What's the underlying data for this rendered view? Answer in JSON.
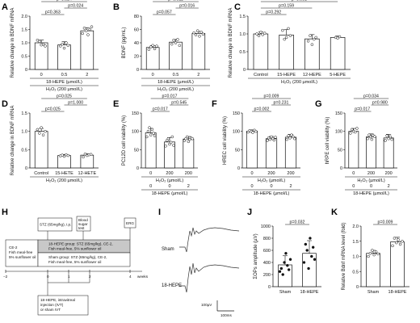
{
  "panel_labels": [
    "A",
    "B",
    "C",
    "D",
    "E",
    "F",
    "G",
    "H",
    "I",
    "J",
    "K"
  ],
  "chart_data": [
    {
      "panel": "A",
      "type": "bar",
      "ylabel": "Relative change in BDNF mRNA",
      "ylim": [
        0,
        2
      ],
      "yticks": [
        "0",
        "0.5",
        "1.0",
        "1.5",
        "2.0"
      ],
      "categories": [
        "0",
        "0.5",
        "2"
      ],
      "values": [
        1.0,
        0.92,
        1.45
      ],
      "errors": [
        0.1,
        0.12,
        0.12
      ],
      "points": [
        [
          1.1,
          1.05,
          0.92,
          0.95,
          0.88
        ],
        [
          0.88,
          0.95,
          0.8,
          1.0,
          0.9
        ],
        [
          1.35,
          1.55,
          1.45,
          1.3,
          1.5,
          1.6
        ]
      ],
      "comparisons": [
        {
          "from": 0,
          "to": 1,
          "label": "p=0.363"
        },
        {
          "from": 1,
          "to": 2,
          "label": "p=0.024"
        },
        {
          "from": 0,
          "to": 2,
          "label": "p=0.024"
        }
      ],
      "xgroup": [
        "18-HEPE (µmol/L)",
        "H₂O₂ (200 µmol/L)"
      ]
    },
    {
      "panel": "B",
      "type": "bar",
      "ylabel": "BDNF (pg/mL)",
      "ylim": [
        0,
        80
      ],
      "yticks": [
        "0",
        "20",
        "40",
        "60",
        "80"
      ],
      "categories": [
        "0",
        "0.5",
        "2"
      ],
      "values": [
        33,
        41,
        54
      ],
      "errors": [
        3,
        4,
        3
      ],
      "points": [
        [
          30,
          34,
          36,
          31,
          35
        ],
        [
          38,
          44,
          40,
          45,
          36
        ],
        [
          55,
          52,
          58,
          50,
          56,
          53
        ]
      ],
      "comparisons": [
        {
          "from": 0,
          "to": 1,
          "label": "p=0.057"
        },
        {
          "from": 1,
          "to": 2,
          "label": "p=0.016"
        },
        {
          "from": 0,
          "to": 2,
          "label": "p=0.011"
        }
      ],
      "xgroup": [
        "18-HEPE (µmol/L)",
        "H₂O₂ (200 µmol/L)"
      ]
    },
    {
      "panel": "C",
      "type": "bar",
      "ylabel": "Relative change in BDNF mRNA",
      "ylim": [
        0,
        1.5
      ],
      "yticks": [
        "0",
        "0.5",
        "1.0",
        "1.5"
      ],
      "categories": [
        "Control",
        "15-HEPE",
        "12-HEPE",
        "5-HEPE"
      ],
      "values": [
        1.0,
        0.97,
        0.86,
        0.9
      ],
      "errors": [
        0.06,
        0.15,
        0.12,
        0.04
      ],
      "points": [
        [
          1.0,
          0.95,
          1.05,
          0.98,
          1.02
        ],
        [
          1.1,
          0.85,
          0.9,
          1.15,
          0.95
        ],
        [
          0.8,
          0.95,
          0.7,
          0.85,
          0.9
        ],
        [
          0.9,
          0.88,
          0.92
        ]
      ],
      "comparisons": [
        {
          "from": 0,
          "to": 1,
          "label": "p=0.292"
        },
        {
          "from": 0,
          "to": 2,
          "label": "p=0.159"
        },
        {
          "from": 0,
          "to": 3,
          "label": "p=0.051"
        }
      ],
      "xgroup": [
        "H₂O₂ (200 µmol/L)"
      ]
    },
    {
      "panel": "D",
      "type": "bar",
      "ylabel": "Relative change in BDNF mRNA",
      "ylim": [
        0,
        1.5
      ],
      "yticks": [
        "0",
        "0.5",
        "1.0",
        "1.5"
      ],
      "categories": [
        "Control",
        "15-HETE",
        "12-HETE"
      ],
      "values": [
        1.0,
        0.34,
        0.35
      ],
      "errors": [
        0.08,
        0.03,
        0.04
      ],
      "points": [
        [
          1.05,
          0.95,
          1.1,
          0.9,
          1.0
        ],
        [
          0.33,
          0.35,
          0.32,
          0.36,
          0.34
        ],
        [
          0.3,
          0.38,
          0.34,
          0.36,
          0.37
        ]
      ],
      "comparisons": [
        {
          "from": 0,
          "to": 1,
          "label": "p=0.025"
        },
        {
          "from": 1,
          "to": 2,
          "label": "p=1.000"
        },
        {
          "from": 0,
          "to": 2,
          "label": "p=0.025"
        }
      ],
      "xgroup": [
        "H₂O₂ (200 µmol/L)"
      ]
    },
    {
      "panel": "E",
      "type": "bar",
      "ylabel": "PC12D cell viability (%)",
      "ylim": [
        0,
        150
      ],
      "yticks": [
        "0",
        "50",
        "100",
        "150"
      ],
      "categories": [
        "0",
        "200",
        "200"
      ],
      "values": [
        96,
        71,
        79
      ],
      "errors": [
        12,
        12,
        7
      ],
      "points": [
        [
          85,
          100,
          110,
          90,
          105,
          95,
          88
        ],
        [
          60,
          75,
          80,
          65,
          70,
          85,
          62
        ],
        [
          75,
          80,
          85,
          72,
          78,
          82,
          80
        ]
      ],
      "comparisons": [
        {
          "from": 0,
          "to": 1,
          "label": "p=0.017"
        },
        {
          "from": 1,
          "to": 2,
          "label": "p=0.545"
        },
        {
          "from": 0,
          "to": 2,
          "label": "p=0.017"
        }
      ],
      "row1": [
        "0",
        "200",
        "200"
      ],
      "row2": [
        "0",
        "0",
        "2"
      ],
      "row1label": "H₂O₂ (µmol/L)",
      "row2label": "18-HEPE (µmol/L)"
    },
    {
      "panel": "F",
      "type": "bar",
      "ylabel": "HREC cell viability (%)",
      "ylim": [
        0,
        150
      ],
      "yticks": [
        "0",
        "50",
        "100",
        "150"
      ],
      "categories": [
        "0",
        "200",
        "200"
      ],
      "values": [
        100,
        80,
        84
      ],
      "errors": [
        4,
        6,
        8
      ],
      "points": [
        [
          98,
          102,
          100,
          97,
          103,
          100
        ],
        [
          75,
          82,
          78,
          85,
          80,
          76,
          84
        ],
        [
          78,
          88,
          82,
          90,
          85,
          80
        ]
      ],
      "comparisons": [
        {
          "from": 0,
          "to": 1,
          "label": "p=0.002"
        },
        {
          "from": 1,
          "to": 2,
          "label": "p=0.231"
        },
        {
          "from": 0,
          "to": 2,
          "label": "p=0.009"
        }
      ],
      "row1": [
        "0",
        "200",
        "200"
      ],
      "row2": [
        "0",
        "0",
        "2"
      ],
      "row1label": "H₂O₂ (µmol/L)",
      "row2label": "18-HEPE (µmol/L)"
    },
    {
      "panel": "G",
      "type": "bar",
      "ylabel": "hRPE cell viability (%)",
      "ylim": [
        0,
        150
      ],
      "yticks": [
        "0",
        "50",
        "100",
        "150"
      ],
      "categories": [
        "0",
        "200",
        "200"
      ],
      "values": [
        100,
        85,
        82
      ],
      "errors": [
        8,
        8,
        10
      ],
      "points": [
        [
          95,
          105,
          100,
          98,
          108
        ],
        [
          80,
          90,
          85,
          78,
          88,
          86
        ],
        [
          75,
          88,
          80,
          85,
          78
        ]
      ],
      "comparisons": [
        {
          "from": 0,
          "to": 1,
          "label": "p=0.017"
        },
        {
          "from": 1,
          "to": 2,
          "label": "p=0.980"
        },
        {
          "from": 0,
          "to": 2,
          "label": "p=0.034"
        }
      ],
      "row1": [
        "0",
        "200",
        "200"
      ],
      "row2": [
        "0",
        "0",
        "2"
      ],
      "row1label": "H₂O₂ (µmol/L)",
      "row2label": "18-HEPE (µmol/L)"
    },
    {
      "panel": "J",
      "type": "bar",
      "ylabel": "ΣOPs amplitude (µV)",
      "ylim": [
        0,
        1000
      ],
      "yticks": [
        "0",
        "200",
        "400",
        "600",
        "800",
        "1000"
      ],
      "categories": [
        "Sham",
        "18-HEPE"
      ],
      "values": [
        360,
        550
      ],
      "errors": [
        150,
        210
      ],
      "points": [
        [
          250,
          300,
          200,
          400,
          550,
          350,
          280,
          450
        ],
        [
          400,
          700,
          600,
          300,
          800,
          500,
          650,
          450
        ]
      ],
      "comparisons": [
        {
          "from": 0,
          "to": 1,
          "label": "p=0.032"
        }
      ]
    },
    {
      "panel": "K",
      "type": "bar",
      "ylabel": "Relative Bdnf mRNA level (fold)",
      "ylim": [
        0,
        2.0
      ],
      "yticks": [
        "0",
        "0.5",
        "1.0",
        "1.5",
        "2.0"
      ],
      "categories": [
        "Sham",
        "18-HEPE"
      ],
      "values": [
        1.1,
        1.48
      ],
      "errors": [
        0.1,
        0.15
      ],
      "points": [
        [
          1.0,
          1.1,
          1.2,
          1.05,
          1.15,
          1.08
        ],
        [
          1.35,
          1.6,
          1.45,
          1.55,
          1.4,
          1.5
        ]
      ],
      "comparisons": [
        {
          "from": 0,
          "to": 1,
          "label": "p=0.009"
        }
      ]
    }
  ],
  "timeline": {
    "ticks": [
      "−2",
      "0",
      "1",
      "2",
      "4"
    ],
    "weeks_label": "weeks",
    "stz_box": "STZ (65mg/kg), i.p.",
    "blood_box": [
      "Blood",
      "sugar",
      "test"
    ],
    "erg_box": "ERG",
    "left_box": [
      "CE-2",
      "Fish meal-free",
      "5% sunflower oil"
    ],
    "hepe_group": [
      "18-HEPE group: STZ (65mg/kg), CE-2,",
      "Fish meal-free, 5% sunflower oil"
    ],
    "sham_group": [
      "Sham group: STZ (65mg/kg), CE-2,",
      "Fish meal-free, 5% sunflower oil"
    ],
    "injection_box": [
      "18-HEPE, intravitreal",
      "injection (IVT)",
      "or sham IVT"
    ]
  },
  "traces": {
    "labels": [
      "Sham",
      "18-HEPE"
    ],
    "scale_v": "100µV",
    "scale_t": "100ms"
  }
}
